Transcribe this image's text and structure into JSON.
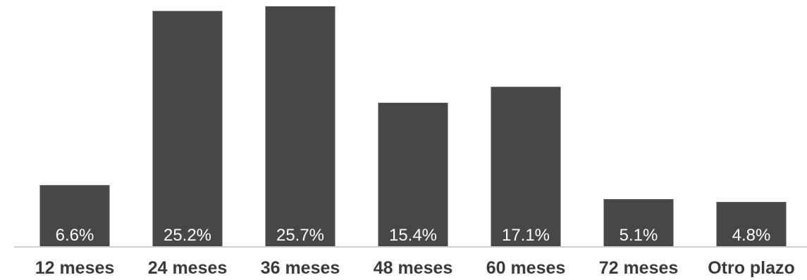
{
  "chart_data": {
    "type": "bar",
    "categories": [
      "12 meses",
      "24 meses",
      "36 meses",
      "48 meses",
      "60 meses",
      "72 meses",
      "Otro plazo"
    ],
    "values": [
      6.6,
      25.2,
      25.7,
      15.4,
      17.1,
      5.1,
      4.8
    ],
    "data_labels": [
      "6.6%",
      "25.2%",
      "25.7%",
      "15.4%",
      "17.1%",
      "5.1%",
      "4.8%"
    ],
    "ylim": [
      0,
      26
    ],
    "grid": false,
    "legend": "none",
    "bar_color": "#474747",
    "label_color": "#ffffff",
    "axis_color": "#d0d0d0",
    "category_label_color": "#3a3a3a"
  }
}
